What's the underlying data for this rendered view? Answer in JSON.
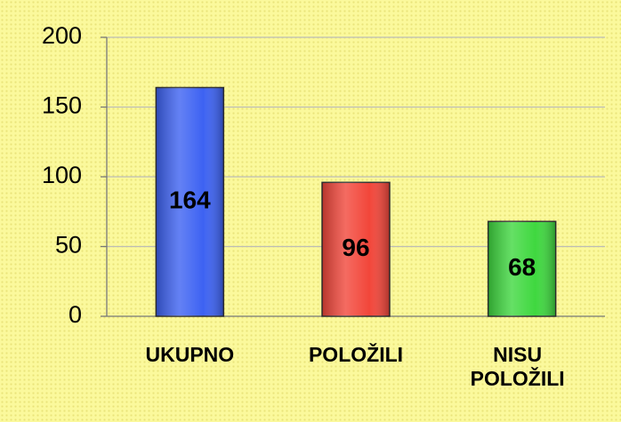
{
  "chart_data": {
    "type": "bar",
    "categories": [
      "UKUPNO",
      "POLOŽILI",
      "NISU POLOŽILI"
    ],
    "values": [
      164,
      96,
      68
    ],
    "colors": [
      "#3d62f2",
      "#f2463a",
      "#3fd83f"
    ],
    "ylim": [
      0,
      200
    ],
    "yticks": [
      0,
      50,
      100,
      150,
      200
    ],
    "grid": true
  }
}
